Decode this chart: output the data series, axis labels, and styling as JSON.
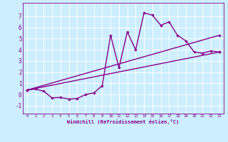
{
  "background_color": "#cceeff",
  "line_color": "#880088",
  "grid_color": "#ffffff",
  "xlabel": "Windchill (Refroidissement éolien,°C)",
  "xlim": [
    -0.5,
    23.5
  ],
  "ylim": [
    -1.7,
    8.2
  ],
  "xticks": [
    0,
    1,
    2,
    3,
    4,
    5,
    6,
    7,
    8,
    9,
    10,
    11,
    12,
    13,
    14,
    15,
    16,
    17,
    18,
    19,
    20,
    21,
    22,
    23
  ],
  "yticks": [
    -1,
    0,
    1,
    2,
    3,
    4,
    5,
    6,
    7
  ],
  "series1_x": [
    0,
    1,
    2,
    3,
    4,
    5,
    6,
    7,
    8,
    9,
    10,
    11,
    12,
    13,
    14,
    15,
    16,
    17,
    18,
    19,
    20,
    21,
    22,
    23
  ],
  "series1_y": [
    0.4,
    0.5,
    0.3,
    -0.3,
    -0.25,
    -0.4,
    -0.35,
    0.0,
    0.15,
    0.8,
    5.3,
    2.4,
    5.6,
    4.0,
    7.3,
    7.1,
    6.2,
    6.5,
    5.3,
    4.8,
    3.8,
    3.7,
    3.9,
    3.8
  ],
  "series2_x": [
    0,
    23
  ],
  "series2_y": [
    0.4,
    3.8
  ],
  "series3_x": [
    0,
    23
  ],
  "series3_y": [
    0.4,
    5.3
  ],
  "marker": "D",
  "markersize": 2.2,
  "linewidth": 1.0
}
